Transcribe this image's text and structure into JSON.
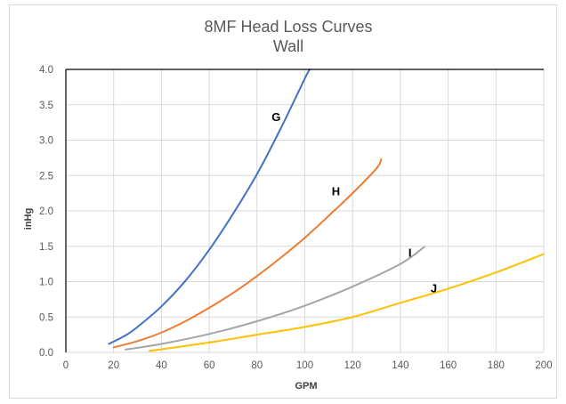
{
  "chart_data": {
    "type": "line",
    "title": "8MF Head Loss Curves",
    "subtitle": "Wall",
    "xlabel": "GPM",
    "ylabel": "inHg",
    "xlim": [
      0,
      200
    ],
    "ylim": [
      0,
      4.0
    ],
    "x_ticks": [
      "0",
      "20",
      "40",
      "60",
      "80",
      "100",
      "120",
      "140",
      "160",
      "180",
      "200"
    ],
    "y_ticks": [
      "0.0",
      "0.5",
      "1.0",
      "1.5",
      "2.0",
      "2.5",
      "3.0",
      "3.5",
      "4.0"
    ],
    "grid": true,
    "legend": "none",
    "series": [
      {
        "name": "G",
        "color": "#4472C4",
        "points": [
          [
            18,
            0.12
          ],
          [
            25,
            0.24
          ],
          [
            30,
            0.36
          ],
          [
            40,
            0.65
          ],
          [
            50,
            1.01
          ],
          [
            60,
            1.45
          ],
          [
            70,
            1.96
          ],
          [
            80,
            2.52
          ],
          [
            90,
            3.17
          ],
          [
            100,
            3.87
          ],
          [
            102,
            4.0
          ]
        ],
        "label_at": [
          88,
          3.27
        ]
      },
      {
        "name": "H",
        "color": "#ED7D31",
        "points": [
          [
            20,
            0.07
          ],
          [
            30,
            0.16
          ],
          [
            40,
            0.28
          ],
          [
            50,
            0.44
          ],
          [
            60,
            0.63
          ],
          [
            70,
            0.84
          ],
          [
            80,
            1.08
          ],
          [
            90,
            1.34
          ],
          [
            100,
            1.62
          ],
          [
            110,
            1.93
          ],
          [
            120,
            2.25
          ],
          [
            130,
            2.6
          ],
          [
            132,
            2.73
          ]
        ],
        "label_at": [
          113,
          2.22
        ]
      },
      {
        "name": "I",
        "color": "#A5A5A5",
        "points": [
          [
            25,
            0.04
          ],
          [
            40,
            0.12
          ],
          [
            60,
            0.26
          ],
          [
            80,
            0.44
          ],
          [
            100,
            0.66
          ],
          [
            120,
            0.93
          ],
          [
            140,
            1.25
          ],
          [
            150,
            1.49
          ]
        ],
        "label_at": [
          144,
          1.35
        ]
      },
      {
        "name": "J",
        "color": "#FFC000",
        "points": [
          [
            35,
            0.02
          ],
          [
            60,
            0.14
          ],
          [
            80,
            0.25
          ],
          [
            100,
            0.36
          ],
          [
            120,
            0.5
          ],
          [
            140,
            0.7
          ],
          [
            160,
            0.9
          ],
          [
            180,
            1.13
          ],
          [
            200,
            1.39
          ]
        ],
        "label_at": [
          154,
          0.85
        ]
      }
    ]
  }
}
